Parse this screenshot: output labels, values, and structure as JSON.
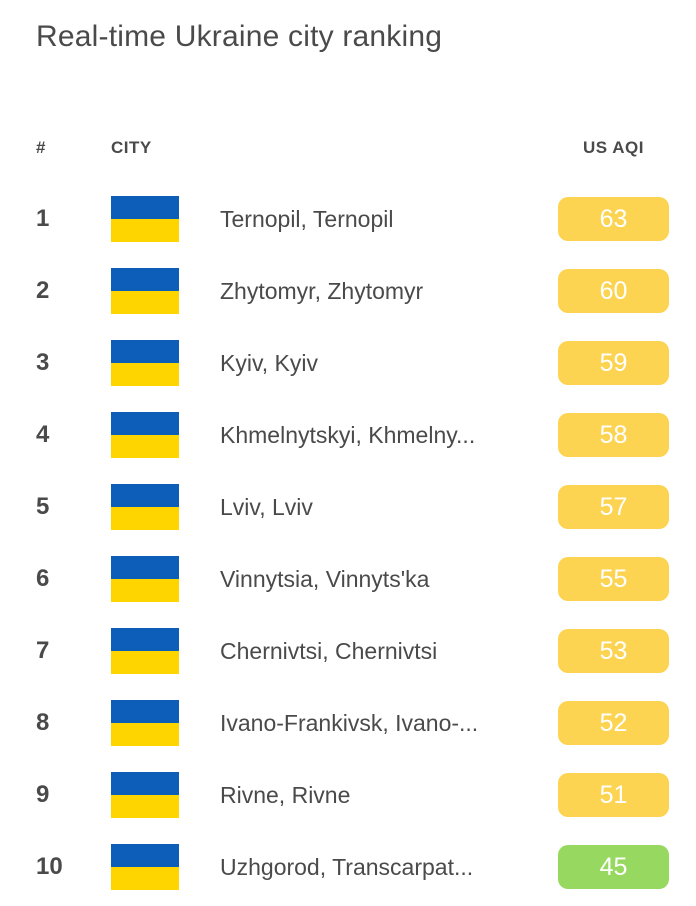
{
  "page": {
    "title": "Real-time Ukraine city ranking"
  },
  "table": {
    "headers": {
      "rank": "#",
      "city": "CITY",
      "aqi": "US AQI"
    },
    "rows": [
      {
        "rank": "1",
        "city": "Ternopil, Ternopil",
        "aqi": "63",
        "level": "moderate"
      },
      {
        "rank": "2",
        "city": "Zhytomyr, Zhytomyr",
        "aqi": "60",
        "level": "moderate"
      },
      {
        "rank": "3",
        "city": "Kyiv, Kyiv",
        "aqi": "59",
        "level": "moderate"
      },
      {
        "rank": "4",
        "city": "Khmelnytskyi, Khmelny...",
        "aqi": "58",
        "level": "moderate"
      },
      {
        "rank": "5",
        "city": "Lviv, Lviv",
        "aqi": "57",
        "level": "moderate"
      },
      {
        "rank": "6",
        "city": "Vinnytsia, Vinnyts'ka",
        "aqi": "55",
        "level": "moderate"
      },
      {
        "rank": "7",
        "city": "Chernivtsi, Chernivtsi",
        "aqi": "53",
        "level": "moderate"
      },
      {
        "rank": "8",
        "city": "Ivano-Frankivsk, Ivano-...",
        "aqi": "52",
        "level": "moderate"
      },
      {
        "rank": "9",
        "city": "Rivne, Rivne",
        "aqi": "51",
        "level": "moderate"
      },
      {
        "rank": "10",
        "city": "Uzhgorod, Transcarpat...",
        "aqi": "45",
        "level": "good"
      }
    ]
  },
  "colors": {
    "moderate": "#FCD452",
    "good": "#97D860",
    "badge_text": "#FFFFFF",
    "text": "#4A4A4A",
    "flag_blue": "#0D5EB9",
    "flag_yellow": "#FFD500"
  }
}
